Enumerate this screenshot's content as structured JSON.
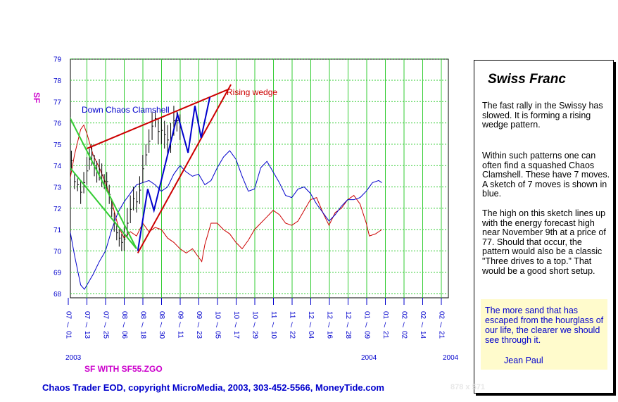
{
  "chart_data": {
    "type": "line",
    "symbol_label": "SF",
    "y_ticks": [
      68,
      69,
      70,
      71,
      72,
      73,
      74,
      75,
      76,
      77,
      78,
      79
    ],
    "ylim": [
      67.8,
      79.3
    ],
    "x_ticks": [
      {
        "mm": "07",
        "dd": "01"
      },
      {
        "mm": "07",
        "dd": "13"
      },
      {
        "mm": "07",
        "dd": "25"
      },
      {
        "mm": "08",
        "dd": "06"
      },
      {
        "mm": "08",
        "dd": "18"
      },
      {
        "mm": "08",
        "dd": "30"
      },
      {
        "mm": "09",
        "dd": "11"
      },
      {
        "mm": "09",
        "dd": "23"
      },
      {
        "mm": "10",
        "dd": "05"
      },
      {
        "mm": "10",
        "dd": "17"
      },
      {
        "mm": "10",
        "dd": "29"
      },
      {
        "mm": "11",
        "dd": "10"
      },
      {
        "mm": "11",
        "dd": "22"
      },
      {
        "mm": "12",
        "dd": "04"
      },
      {
        "mm": "12",
        "dd": "16"
      },
      {
        "mm": "12",
        "dd": "28"
      },
      {
        "mm": "01",
        "dd": "09"
      },
      {
        "mm": "01",
        "dd": "21"
      },
      {
        "mm": "02",
        "dd": "02"
      },
      {
        "mm": "02",
        "dd": "14"
      },
      {
        "mm": "02",
        "dd": "21"
      }
    ],
    "year_labels": [
      "2003",
      "2004",
      "2004"
    ],
    "annotations": {
      "rising_wedge": "Rising wedge",
      "clamshell": "Down Chaos Clamshell"
    },
    "price_bars": [
      {
        "i": 0,
        "h": 74.8,
        "l": 74.0
      },
      {
        "i": 0.5,
        "h": 74.7,
        "l": 73.8
      },
      {
        "i": 1,
        "h": 73.6,
        "l": 72.9
      },
      {
        "i": 1.5,
        "h": 73.4,
        "l": 72.8
      },
      {
        "i": 2,
        "h": 73.3,
        "l": 72.2
      },
      {
        "i": 2.5,
        "h": 73.7,
        "l": 72.7
      },
      {
        "i": 3,
        "h": 74.4,
        "l": 73.1
      },
      {
        "i": 3.4,
        "h": 74.8,
        "l": 73.8
      },
      {
        "i": 3.8,
        "h": 75.0,
        "l": 74.0
      },
      {
        "i": 4.2,
        "h": 74.5,
        "l": 73.5
      },
      {
        "i": 4.6,
        "h": 74.2,
        "l": 73.2
      },
      {
        "i": 5,
        "h": 74.3,
        "l": 73.3
      },
      {
        "i": 5.4,
        "h": 74.1,
        "l": 73.0
      },
      {
        "i": 5.8,
        "h": 73.6,
        "l": 72.9
      },
      {
        "i": 6.2,
        "h": 73.7,
        "l": 72.8
      },
      {
        "i": 6.6,
        "h": 73.1,
        "l": 72.2
      },
      {
        "i": 7,
        "h": 72.4,
        "l": 71.6
      },
      {
        "i": 7.4,
        "h": 71.8,
        "l": 70.9
      },
      {
        "i": 7.8,
        "h": 71.2,
        "l": 70.5
      },
      {
        "i": 8.2,
        "h": 71.0,
        "l": 70.2
      },
      {
        "i": 8.6,
        "h": 70.8,
        "l": 70.0
      },
      {
        "i": 9,
        "h": 71.1,
        "l": 70.0
      },
      {
        "i": 9.5,
        "h": 72.0,
        "l": 70.6
      },
      {
        "i": 10,
        "h": 72.6,
        "l": 71.3
      },
      {
        "i": 10.5,
        "h": 73.0,
        "l": 71.9
      },
      {
        "i": 11,
        "h": 72.8,
        "l": 71.8
      },
      {
        "i": 11.5,
        "h": 73.5,
        "l": 72.2
      },
      {
        "i": 12,
        "h": 74.5,
        "l": 73.2
      },
      {
        "i": 12.5,
        "h": 75.0,
        "l": 74.0
      },
      {
        "i": 13,
        "h": 75.7,
        "l": 74.6
      },
      {
        "i": 13.5,
        "h": 76.5,
        "l": 75.2
      },
      {
        "i": 14,
        "h": 76.6,
        "l": 75.8
      },
      {
        "i": 14.5,
        "h": 76.2,
        "l": 75.0
      },
      {
        "i": 15,
        "h": 76.3,
        "l": 75.0
      },
      {
        "i": 15.5,
        "h": 76.1,
        "l": 74.8
      },
      {
        "i": 16,
        "h": 75.9,
        "l": 74.5
      },
      {
        "i": 16.5,
        "h": 76.0,
        "l": 74.6
      },
      {
        "i": 17,
        "h": 76.8,
        "l": 75.4
      },
      {
        "i": 17.5,
        "h": 76.6,
        "l": 75.6
      },
      {
        "i": 18,
        "h": 76.4,
        "l": 75.2
      }
    ],
    "series": [
      {
        "name": "forecast-red",
        "color": "#cc0000",
        "values": [
          [
            0,
            72.9
          ],
          [
            1,
            74.5
          ],
          [
            2,
            75.7
          ],
          [
            2.5,
            75.9
          ],
          [
            3,
            75.5
          ],
          [
            4,
            74.5
          ],
          [
            5,
            73.9
          ],
          [
            6,
            73.2
          ],
          [
            7,
            72.3
          ],
          [
            8,
            71.2
          ],
          [
            9,
            70.6
          ],
          [
            10,
            70.9
          ],
          [
            11,
            70.7
          ],
          [
            12,
            71.3
          ],
          [
            13,
            70.9
          ],
          [
            14,
            71.1
          ],
          [
            15,
            71.0
          ],
          [
            16,
            70.6
          ],
          [
            17,
            70.4
          ],
          [
            18,
            70.1
          ],
          [
            19,
            69.9
          ],
          [
            20,
            70.1
          ],
          [
            21,
            69.7
          ],
          [
            21.5,
            69.5
          ],
          [
            22,
            70.3
          ],
          [
            23,
            71.3
          ],
          [
            24,
            71.3
          ],
          [
            25,
            71.0
          ],
          [
            26,
            70.8
          ],
          [
            27,
            70.4
          ],
          [
            28,
            70.1
          ],
          [
            29,
            70.5
          ],
          [
            30,
            71.0
          ],
          [
            31,
            71.3
          ],
          [
            32,
            71.6
          ],
          [
            33,
            71.9
          ],
          [
            34,
            71.7
          ],
          [
            35,
            71.3
          ],
          [
            36,
            71.2
          ],
          [
            37,
            71.4
          ],
          [
            38,
            71.9
          ],
          [
            39,
            72.4
          ],
          [
            40,
            72.5
          ],
          [
            41,
            71.8
          ],
          [
            42,
            71.2
          ],
          [
            43,
            71.8
          ],
          [
            44,
            72.0
          ],
          [
            45,
            72.4
          ],
          [
            46,
            72.6
          ],
          [
            47,
            72.2
          ],
          [
            48,
            71.3
          ],
          [
            48.5,
            70.7
          ],
          [
            49.5,
            70.8
          ],
          [
            50.5,
            71.0
          ]
        ]
      },
      {
        "name": "forecast-blue",
        "color": "#0000cc",
        "values": [
          [
            0,
            71.4
          ],
          [
            1,
            69.8
          ],
          [
            2,
            68.4
          ],
          [
            2.6,
            68.2
          ],
          [
            3,
            68.4
          ],
          [
            4,
            68.9
          ],
          [
            5,
            69.5
          ],
          [
            6,
            70.0
          ],
          [
            7,
            71.0
          ],
          [
            8,
            71.8
          ],
          [
            9,
            72.3
          ],
          [
            10,
            72.7
          ],
          [
            11,
            73.1
          ],
          [
            12,
            73.2
          ],
          [
            13,
            73.3
          ],
          [
            14,
            73.1
          ],
          [
            15,
            72.8
          ],
          [
            16,
            73.0
          ],
          [
            17,
            73.6
          ],
          [
            18,
            74.0
          ],
          [
            19,
            73.7
          ],
          [
            20,
            73.5
          ],
          [
            21,
            73.6
          ],
          [
            22,
            73.1
          ],
          [
            23,
            73.3
          ],
          [
            24,
            73.9
          ],
          [
            25,
            74.4
          ],
          [
            26,
            74.7
          ],
          [
            27,
            74.3
          ],
          [
            28,
            73.5
          ],
          [
            29,
            72.8
          ],
          [
            30,
            72.9
          ],
          [
            31,
            73.9
          ],
          [
            32,
            74.2
          ],
          [
            33,
            73.7
          ],
          [
            34,
            73.2
          ],
          [
            35,
            72.6
          ],
          [
            36,
            72.5
          ],
          [
            37,
            72.9
          ],
          [
            38,
            73.0
          ],
          [
            39,
            72.7
          ],
          [
            40,
            72.2
          ],
          [
            41,
            71.8
          ],
          [
            42,
            71.4
          ],
          [
            43,
            71.7
          ],
          [
            44,
            72.1
          ],
          [
            45,
            72.4
          ],
          [
            46,
            72.4
          ],
          [
            47,
            72.5
          ],
          [
            48,
            72.8
          ],
          [
            49,
            73.2
          ],
          [
            50,
            73.3
          ],
          [
            50.5,
            73.2
          ]
        ]
      }
    ],
    "trendlines": [
      {
        "name": "wedge-upper",
        "color": "#cc0000",
        "from": [
          3,
          74.8
        ],
        "to": [
          26,
          77.6
        ]
      },
      {
        "name": "wedge-lower",
        "color": "#cc0000",
        "from": [
          11.2,
          69.9
        ],
        "to": [
          26.2,
          77.8
        ]
      },
      {
        "name": "clamshell-upper",
        "color": "#33cc33",
        "from": [
          0,
          76.4
        ],
        "to": [
          11,
          70.1
        ]
      },
      {
        "name": "clamshell-lower",
        "color": "#33cc33",
        "from": [
          0,
          74.0
        ],
        "to": [
          11,
          70.1
        ]
      },
      {
        "name": "chaos-sketch",
        "color": "#0000cc",
        "points": [
          [
            11.2,
            70.0
          ],
          [
            12.8,
            72.9
          ],
          [
            13.8,
            71.9
          ],
          [
            17.6,
            76.4
          ],
          [
            19.3,
            74.6
          ],
          [
            20.4,
            76.8
          ],
          [
            21.4,
            75.3
          ],
          [
            22.8,
            77.2
          ]
        ]
      }
    ]
  },
  "side_panel": {
    "title": "Swiss Franc",
    "paragraphs": [
      "The fast rally in the Swissy has slowed. It is forming a rising wedge pattern.",
      "Within such patterns one can often find a squashed Chaos Clamshell. These have 7 moves. A sketch of 7 moves is shown in blue.",
      "The high on this sketch lines up with the energy forecast high near November 9th at a price of 77. Should that occur, the pattern would also be a classic \"Three drives to a top.\" That would be a good short setup."
    ],
    "quote": "The more sand that has escaped from the hourglass of our life, the clearer we should see through it.",
    "quote_author": "Jean Paul"
  },
  "labels": {
    "study": "SF WITH SF55.ZGO",
    "footer": "Chaos Trader EOD, copyright MicroMedia, 2003, 303-452-5566, MoneyTide.com",
    "dims": "878 x 571"
  }
}
